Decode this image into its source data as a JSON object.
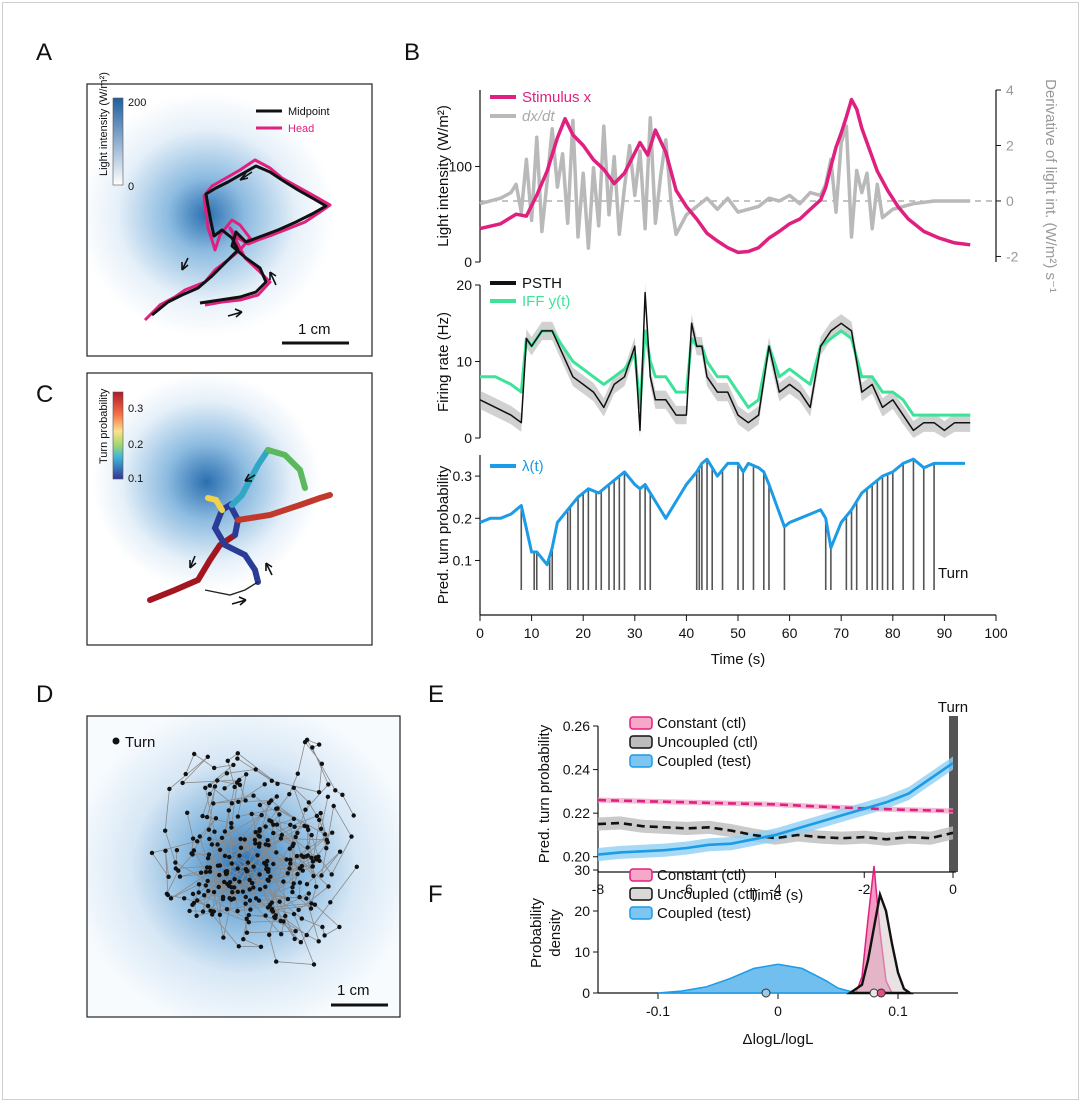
{
  "panels": {
    "A": "A",
    "B": "B",
    "C": "C",
    "D": "D",
    "E": "E",
    "F": "F"
  },
  "colors": {
    "magenta": "#e0207f",
    "grey": "#b9b9b9",
    "black": "#111111",
    "green": "#3ee39a",
    "blue": "#1c9be6",
    "arena_blue": "#2a6fb0"
  },
  "panelA": {
    "colorbar_label": "Light intensity (W/m²)",
    "colorbar_max": "200",
    "colorbar_min": "0",
    "legend": [
      "Midpoint",
      "Head"
    ],
    "scalebar": "1 cm"
  },
  "panelC": {
    "colorbar_label": "Turn probability",
    "colorbar_ticks": [
      "0.3",
      "0.2",
      "0.1"
    ]
  },
  "panelD": {
    "legend": "Turn",
    "scalebar": "1 cm"
  },
  "chart_data": [
    {
      "type": "line",
      "panel": "B (top)",
      "ylabel": "Light intensity (W/m²)",
      "y2label": "Derivative of light int. (W/m²) s⁻¹",
      "ylim": [
        0,
        180
      ],
      "y2lim": [
        -2.2,
        4
      ],
      "yticks": [
        "0",
        "100"
      ],
      "y2ticks": [
        "4",
        "2",
        "0",
        "-2"
      ],
      "series": [
        {
          "name": "Stimulus x",
          "color": "#e0207f",
          "x": [
            0,
            4,
            7,
            9,
            11,
            13,
            15,
            16.5,
            18,
            20,
            22,
            24,
            26,
            28,
            31,
            32.5,
            34,
            36,
            38,
            40,
            42,
            44,
            46,
            48,
            50,
            52,
            54,
            56,
            58,
            60,
            62,
            64,
            66,
            67,
            68,
            69,
            70,
            71,
            72,
            73,
            74,
            75,
            77,
            79,
            81,
            83,
            86,
            89,
            92,
            95
          ],
          "y": [
            35,
            40,
            50,
            48,
            70,
            95,
            130,
            150,
            133,
            122,
            107,
            97,
            82,
            93,
            125,
            112,
            138,
            115,
            75,
            58,
            45,
            30,
            22,
            15,
            10,
            11,
            15,
            25,
            32,
            40,
            45,
            55,
            65,
            78,
            100,
            120,
            135,
            152,
            170,
            160,
            140,
            125,
            95,
            75,
            58,
            45,
            32,
            25,
            20,
            18
          ]
        },
        {
          "name": "dx/dt",
          "color": "#b9b9b9",
          "x": [
            0,
            4,
            6,
            7,
            8,
            9,
            10,
            11,
            12,
            13,
            14,
            15,
            16,
            17,
            18,
            19,
            20,
            21,
            22,
            23,
            24,
            25,
            26,
            27,
            28,
            29,
            30,
            31,
            32,
            33,
            34,
            35,
            36,
            37,
            38,
            40,
            42,
            44,
            46,
            48,
            50,
            52,
            54,
            56,
            58,
            60,
            62,
            64,
            66,
            67,
            68,
            69,
            70,
            71,
            72,
            73,
            74,
            75,
            76,
            77,
            78,
            80,
            84,
            88,
            92,
            95
          ],
          "y": [
            -0.1,
            0.1,
            0.3,
            0.6,
            -0.4,
            1.5,
            -0.7,
            2.3,
            -1.1,
            0.7,
            2.6,
            0.5,
            1.7,
            -0.8,
            2.9,
            -1.3,
            1.0,
            -1.7,
            1.2,
            -0.9,
            2.7,
            -0.5,
            1.6,
            -1.2,
            0.5,
            2.0,
            0.2,
            1.8,
            -1.0,
            3.0,
            -0.8,
            0.9,
            2.2,
            0.0,
            -1.2,
            -0.5,
            -0.2,
            0.1,
            -0.3,
            0.1,
            -0.4,
            -0.3,
            -0.2,
            0.1,
            0.0,
            0.2,
            -0.1,
            0.3,
            0.2,
            0.6,
            1.5,
            -0.4,
            2.1,
            2.7,
            -1.3,
            1.1,
            0.3,
            1.0,
            -1.0,
            0.6,
            -0.6,
            -0.3,
            -0.1,
            0.0,
            0.0,
            0.0
          ]
        }
      ]
    },
    {
      "type": "line",
      "panel": "B (middle)",
      "ylabel": "Firing rate (Hz)",
      "ylim": [
        0,
        20
      ],
      "yticks": [
        "0",
        "10",
        "20"
      ],
      "series": [
        {
          "name": "PSTH",
          "color": "#111111",
          "x": [
            0,
            3,
            6,
            8,
            9,
            10,
            12,
            14,
            16,
            18,
            20,
            22,
            24,
            26,
            28,
            30,
            31,
            32,
            33,
            34,
            36,
            38,
            40,
            41,
            42,
            43,
            44,
            46,
            48,
            50,
            52,
            54,
            56,
            58,
            60,
            62,
            64,
            66,
            68,
            70,
            72,
            74,
            76,
            78,
            80,
            82,
            84,
            86,
            88,
            90,
            92,
            95
          ],
          "y": [
            5,
            4,
            3,
            2,
            13,
            12,
            14,
            14,
            11,
            8,
            7,
            6,
            4,
            7,
            8,
            12,
            1,
            19,
            8,
            5,
            5,
            3,
            3,
            15,
            12,
            12,
            8,
            6,
            6,
            3,
            2,
            3,
            12,
            6,
            7,
            6,
            4,
            12,
            14,
            15,
            14,
            6,
            7,
            4,
            5,
            3,
            1,
            2,
            2,
            1,
            2,
            2
          ]
        },
        {
          "name": "IFF y(t)",
          "color": "#3ee39a",
          "x": [
            0,
            3,
            6,
            8,
            9,
            10,
            12,
            14,
            16,
            18,
            20,
            22,
            24,
            26,
            28,
            30,
            31,
            32,
            33,
            34,
            36,
            38,
            40,
            41,
            42,
            43,
            44,
            46,
            48,
            50,
            52,
            54,
            56,
            58,
            60,
            62,
            64,
            66,
            68,
            70,
            72,
            74,
            76,
            78,
            80,
            82,
            84,
            86,
            88,
            90,
            92,
            95
          ],
          "y": [
            8,
            8,
            7,
            6,
            13,
            12,
            14,
            14,
            12,
            10,
            9,
            8,
            7,
            8,
            9,
            11,
            4,
            14,
            10,
            8,
            8,
            6,
            6,
            13,
            12,
            12,
            10,
            8,
            8,
            6,
            4,
            5,
            12,
            8,
            9,
            8,
            7,
            12,
            13,
            14,
            13,
            8,
            8,
            6,
            6,
            5,
            3,
            3,
            3,
            3,
            3,
            3
          ]
        }
      ]
    },
    {
      "type": "line",
      "panel": "B (bottom)",
      "ylabel": "Pred. turn probability",
      "xlabel": "Time (s)",
      "xlim": [
        0,
        100
      ],
      "ylim": [
        0.03,
        0.35
      ],
      "xticks": [
        "0",
        "10",
        "20",
        "30",
        "40",
        "50",
        "60",
        "70",
        "80",
        "90",
        "100"
      ],
      "yticks": [
        "0.1",
        "0.2",
        "0.3"
      ],
      "annotation": "Turn",
      "series": [
        {
          "name": "λ(t)",
          "color": "#1c9be6",
          "x": [
            0,
            2,
            4,
            6,
            7,
            8,
            10,
            11,
            13,
            14,
            15,
            17,
            19,
            21,
            23,
            25,
            27,
            28,
            30,
            31,
            32,
            36,
            38,
            40,
            42,
            43,
            44,
            46,
            48,
            50,
            51,
            52,
            54,
            55,
            56,
            59,
            60,
            62,
            64,
            66,
            67,
            68,
            70,
            72,
            74,
            76,
            78,
            80,
            82,
            84,
            86,
            88,
            90,
            94
          ],
          "y": [
            0.19,
            0.2,
            0.2,
            0.21,
            0.22,
            0.23,
            0.12,
            0.12,
            0.09,
            0.13,
            0.19,
            0.22,
            0.25,
            0.27,
            0.26,
            0.28,
            0.3,
            0.31,
            0.28,
            0.27,
            0.28,
            0.2,
            0.24,
            0.28,
            0.31,
            0.33,
            0.34,
            0.3,
            0.33,
            0.33,
            0.31,
            0.33,
            0.32,
            0.31,
            0.28,
            0.18,
            0.19,
            0.2,
            0.21,
            0.22,
            0.2,
            0.13,
            0.19,
            0.22,
            0.26,
            0.28,
            0.3,
            0.31,
            0.33,
            0.34,
            0.32,
            0.33,
            0.33,
            0.33
          ]
        }
      ],
      "turns": [
        8,
        10.5,
        11,
        13.5,
        14,
        17,
        17.5,
        19,
        20,
        21,
        22.5,
        23.5,
        25,
        26,
        27,
        28,
        31,
        32,
        33,
        42,
        42.5,
        43,
        44,
        45,
        47,
        50,
        51,
        53,
        55,
        56,
        59,
        67,
        68,
        71,
        72,
        73,
        75,
        76,
        77,
        78,
        79,
        80,
        82,
        84,
        86,
        88
      ]
    },
    {
      "type": "line",
      "panel": "E",
      "ylabel": "Pred. turn probability",
      "xlabel": "Time (s)",
      "xlim": [
        -8,
        0
      ],
      "ylim": [
        0.193,
        0.26
      ],
      "xticks": [
        "-8",
        "-6",
        "-4",
        "-2",
        "0"
      ],
      "yticks": [
        "0.20",
        "0.22",
        "0.24",
        "0.26"
      ],
      "annotation": "Turn",
      "series": [
        {
          "name": "Constant (ctl)",
          "color": "#e0207f",
          "x": [
            -8,
            -7,
            -6,
            -5,
            -4,
            -3,
            -2,
            -1,
            0
          ],
          "y": [
            0.226,
            0.2255,
            0.225,
            0.2245,
            0.224,
            0.223,
            0.2222,
            0.2215,
            0.221
          ]
        },
        {
          "name": "Uncoupled (ctl)",
          "color": "#111111",
          "x": [
            -8,
            -7.5,
            -7,
            -6.5,
            -6,
            -5.5,
            -5,
            -4.5,
            -4,
            -3.5,
            -3,
            -2.5,
            -2,
            -1.5,
            -1,
            -0.5,
            0
          ],
          "y": [
            0.215,
            0.2155,
            0.214,
            0.2135,
            0.213,
            0.2135,
            0.212,
            0.21,
            0.2085,
            0.21,
            0.209,
            0.2085,
            0.209,
            0.208,
            0.209,
            0.2085,
            0.211
          ]
        },
        {
          "name": "Coupled (test)",
          "color": "#1c9be6",
          "x": [
            -8,
            -7.5,
            -7,
            -6.5,
            -6,
            -5.5,
            -5,
            -4.5,
            -4,
            -3.5,
            -3,
            -2.5,
            -2,
            -1.5,
            -1,
            -0.5,
            0
          ],
          "y": [
            0.201,
            0.202,
            0.2025,
            0.203,
            0.204,
            0.2055,
            0.206,
            0.208,
            0.21,
            0.213,
            0.216,
            0.219,
            0.222,
            0.225,
            0.229,
            0.236,
            0.243
          ]
        }
      ]
    },
    {
      "type": "area",
      "panel": "F",
      "ylabel": "Probability density",
      "xlabel": "ΔlogL/logL",
      "xlim": [
        -0.15,
        0.15
      ],
      "ylim": [
        0,
        30
      ],
      "xticks": [
        "-0.1",
        "0",
        "0.1"
      ],
      "yticks": [
        "0",
        "10",
        "20",
        "30"
      ],
      "series": [
        {
          "name": "Constant (ctl)",
          "color": "#e0207f",
          "x": [
            0.065,
            0.07,
            0.075,
            0.08,
            0.085,
            0.09,
            0.095
          ],
          "y": [
            0,
            4,
            18,
            31,
            15,
            3,
            0
          ]
        },
        {
          "name": "Uncoupled (ctl)",
          "color": "#111111",
          "x": [
            0.06,
            0.07,
            0.075,
            0.08,
            0.085,
            0.09,
            0.095,
            0.1,
            0.105,
            0.11
          ],
          "y": [
            0,
            2,
            8,
            16,
            24,
            20,
            12,
            5,
            1,
            0
          ]
        },
        {
          "name": "Coupled (test)",
          "color": "#1c9be6",
          "x": [
            -0.1,
            -0.08,
            -0.06,
            -0.04,
            -0.02,
            0,
            0.02,
            0.04,
            0.05,
            0.06,
            0.07
          ],
          "y": [
            0,
            0.5,
            1.5,
            3.5,
            6,
            7,
            6,
            3,
            1.2,
            0.4,
            0
          ]
        }
      ],
      "means": [
        {
          "series": "Coupled (test)",
          "x": -0.01
        },
        {
          "series": "Uncoupled (ctl)",
          "x": 0.08
        },
        {
          "series": "Constant (ctl)",
          "x": 0.086
        }
      ]
    }
  ]
}
